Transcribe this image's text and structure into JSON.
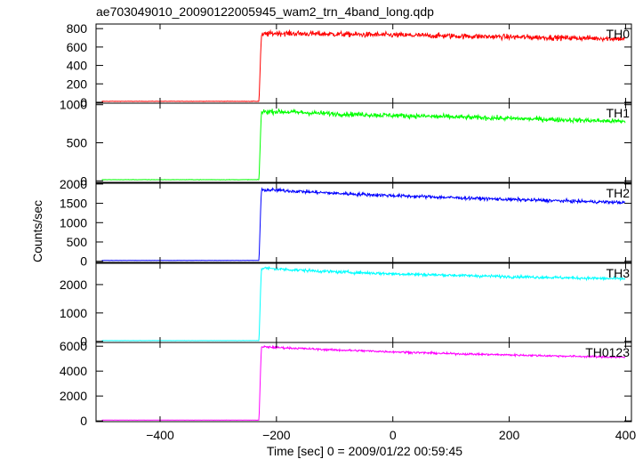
{
  "chart_data": {
    "type": "line",
    "title": "ae703049010_20090122005945_wam2_trn_4band_long.qdp",
    "xlabel": "Time [sec] 0 = 2009/01/22 00:59:45",
    "ylabel": "Counts/sec",
    "xlim": [
      -510,
      410
    ],
    "xticks": [
      -400,
      -200,
      0,
      200,
      400
    ],
    "grid": false,
    "legend": "none",
    "onset_time": -226,
    "series": [
      {
        "name": "TH0",
        "color": "#ff0000",
        "ylim": [
          -10,
          850
        ],
        "yticks": [
          0,
          200,
          400,
          600,
          800
        ],
        "x": [
          -500,
          -230,
          -226,
          -220,
          -200,
          -100,
          0,
          100,
          200,
          300,
          400
        ],
        "values": [
          10,
          10,
          720,
          740,
          750,
          740,
          730,
          720,
          710,
          700,
          690
        ]
      },
      {
        "name": "TH1",
        "color": "#00ff00",
        "ylim": [
          -20,
          1020
        ],
        "yticks": [
          0,
          500,
          1000
        ],
        "x": [
          -500,
          -230,
          -226,
          -220,
          -200,
          -100,
          0,
          100,
          200,
          300,
          400
        ],
        "values": [
          15,
          15,
          900,
          910,
          910,
          880,
          860,
          840,
          820,
          800,
          780
        ]
      },
      {
        "name": "TH2",
        "color": "#0000ff",
        "ylim": [
          -30,
          2020
        ],
        "yticks": [
          0,
          500,
          1000,
          1500,
          2000
        ],
        "x": [
          -500,
          -230,
          -226,
          -220,
          -200,
          -100,
          0,
          100,
          200,
          300,
          400
        ],
        "values": [
          20,
          20,
          1830,
          1850,
          1840,
          1760,
          1700,
          1650,
          1600,
          1560,
          1520
        ]
      },
      {
        "name": "TH3",
        "color": "#00ffff",
        "ylim": [
          -40,
          2750
        ],
        "yticks": [
          0,
          1000,
          2000
        ],
        "x": [
          -500,
          -230,
          -226,
          -220,
          -200,
          -100,
          0,
          100,
          200,
          300,
          400
        ],
        "values": [
          25,
          25,
          2560,
          2580,
          2550,
          2450,
          2380,
          2330,
          2280,
          2240,
          2200
        ]
      },
      {
        "name": "TH0123",
        "color": "#ff00ff",
        "ylim": [
          -60,
          6300
        ],
        "yticks": [
          0,
          2000,
          4000,
          6000
        ],
        "x": [
          -500,
          -230,
          -226,
          -220,
          -200,
          -100,
          0,
          100,
          200,
          300,
          400
        ],
        "values": [
          60,
          60,
          5900,
          5950,
          5900,
          5700,
          5550,
          5400,
          5300,
          5200,
          5100
        ]
      }
    ]
  }
}
